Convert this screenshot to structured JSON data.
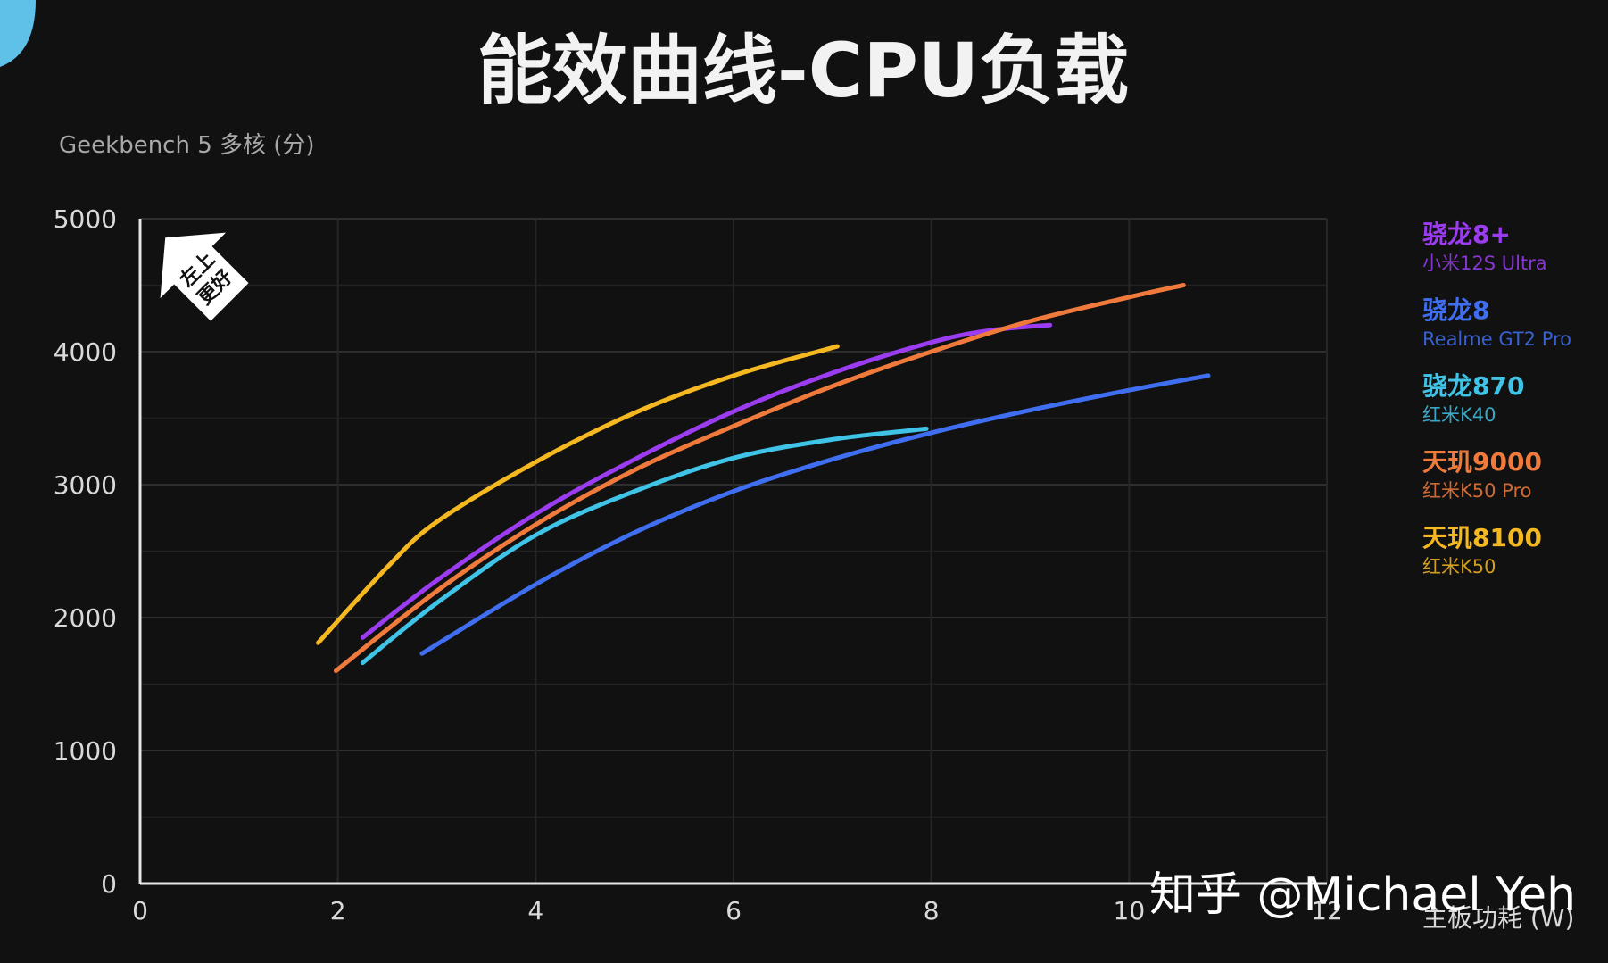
{
  "title": "能效曲线-CPU负载",
  "watermark": "知乎 @Michael Yeh",
  "badge": {
    "line1": "左上",
    "line2": "更好"
  },
  "chart_data": {
    "type": "line",
    "title": "能效曲线-CPU负载",
    "ylabel": "Geekbench 5 多核 (分)",
    "xlabel": "主板功耗 (W)",
    "xlim": [
      0,
      12
    ],
    "ylim": [
      0,
      5000
    ],
    "xticks": [
      0,
      2,
      4,
      6,
      8,
      10,
      12
    ],
    "yticks": [
      0,
      1000,
      2000,
      3000,
      4000,
      5000
    ],
    "xtick_labels": [
      "0",
      "2",
      "4",
      "6",
      "8",
      "10",
      "12"
    ],
    "ytick_labels": [
      "0",
      "1000",
      "2000",
      "3000",
      "4000",
      "5000"
    ],
    "grid": true,
    "legend_position": "right",
    "series": [
      {
        "name": "骁龙8+",
        "device": "小米12S Ultra",
        "color": "#9b3cf0",
        "x": [
          2.25,
          3,
          4,
          5,
          6,
          7,
          8,
          8.6,
          9.2
        ],
        "y": [
          1850,
          2280,
          2780,
          3190,
          3550,
          3840,
          4070,
          4160,
          4200
        ]
      },
      {
        "name": "骁龙8",
        "device": "Realme GT2 Pro",
        "color": "#3f6ff0",
        "x": [
          2.85,
          4,
          5,
          6,
          7,
          8,
          9,
          10,
          10.8
        ],
        "y": [
          1730,
          2250,
          2640,
          2950,
          3190,
          3390,
          3560,
          3710,
          3820
        ]
      },
      {
        "name": "骁龙870",
        "device": "红米K40",
        "color": "#3fc3e6",
        "x": [
          2.25,
          3,
          4,
          5,
          6,
          7,
          7.95
        ],
        "y": [
          1660,
          2110,
          2620,
          2950,
          3200,
          3340,
          3420
        ]
      },
      {
        "name": "天玑9000",
        "device": "红米K50 Pro",
        "color": "#f07a3c",
        "x": [
          1.98,
          3,
          4,
          5,
          6,
          7,
          8,
          9,
          10,
          10.55
        ],
        "y": [
          1600,
          2200,
          2700,
          3110,
          3440,
          3740,
          4000,
          4230,
          4410,
          4500
        ]
      },
      {
        "name": "天玑8100",
        "device": "红米K50",
        "color": "#f5b820",
        "x": [
          1.8,
          2.5,
          3,
          4,
          5,
          6,
          7.05
        ],
        "y": [
          1810,
          2380,
          2720,
          3170,
          3540,
          3820,
          4040
        ]
      }
    ]
  }
}
